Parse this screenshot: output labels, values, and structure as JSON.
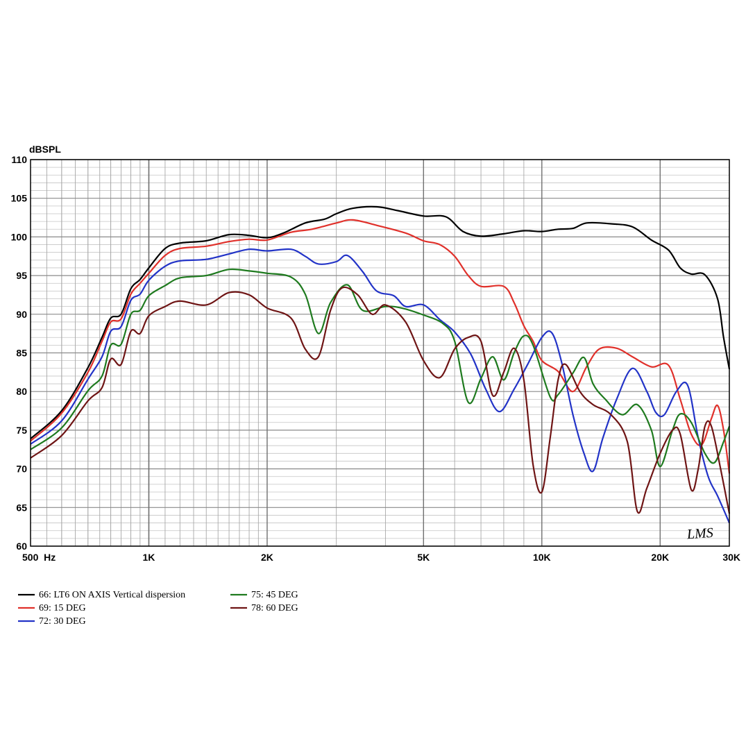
{
  "chart_data": {
    "type": "line",
    "title": "",
    "ylabel": "dBSPL",
    "xlabel": "",
    "x_scale": "log",
    "xlim": [
      500,
      30000
    ],
    "ylim": [
      60,
      110
    ],
    "grid": true,
    "legend_position": "bottom-left",
    "x_ticks": [
      {
        "value": 500,
        "label": "500  Hz"
      },
      {
        "value": 1000,
        "label": "1K"
      },
      {
        "value": 2000,
        "label": "2K"
      },
      {
        "value": 5000,
        "label": "5K"
      },
      {
        "value": 10000,
        "label": "10K"
      },
      {
        "value": 20000,
        "label": "20K"
      },
      {
        "value": 30000,
        "label": "30K"
      }
    ],
    "y_ticks": [
      60,
      65,
      70,
      75,
      80,
      85,
      90,
      95,
      100,
      105,
      110
    ],
    "series": [
      {
        "name": "66: LT6 ON AXIS Vertical dispersion",
        "color": "#000000",
        "points": [
          [
            500,
            73.9
          ],
          [
            600,
            77.5
          ],
          [
            700,
            83.1
          ],
          [
            760,
            87.0
          ],
          [
            800,
            89.5
          ],
          [
            850,
            90.0
          ],
          [
            900,
            93.3
          ],
          [
            950,
            94.5
          ],
          [
            1000,
            96.0
          ],
          [
            1100,
            98.5
          ],
          [
            1200,
            99.2
          ],
          [
            1400,
            99.5
          ],
          [
            1600,
            100.3
          ],
          [
            1800,
            100.2
          ],
          [
            2000,
            99.9
          ],
          [
            2200,
            100.5
          ],
          [
            2500,
            101.8
          ],
          [
            2800,
            102.3
          ],
          [
            3000,
            103.0
          ],
          [
            3300,
            103.7
          ],
          [
            3800,
            103.9
          ],
          [
            4300,
            103.4
          ],
          [
            5000,
            102.7
          ],
          [
            5700,
            102.6
          ],
          [
            6300,
            100.7
          ],
          [
            7000,
            100.1
          ],
          [
            8000,
            100.4
          ],
          [
            9000,
            100.8
          ],
          [
            10000,
            100.7
          ],
          [
            11000,
            101.0
          ],
          [
            12000,
            101.1
          ],
          [
            13000,
            101.8
          ],
          [
            15000,
            101.7
          ],
          [
            17000,
            101.3
          ],
          [
            19000,
            99.6
          ],
          [
            21000,
            98.3
          ],
          [
            22500,
            96.0
          ],
          [
            24000,
            95.2
          ],
          [
            26000,
            95.1
          ],
          [
            28000,
            92.0
          ],
          [
            29000,
            87.0
          ],
          [
            30000,
            82.9
          ]
        ]
      },
      {
        "name": "69: 15 DEG",
        "color": "#e0302a",
        "points": [
          [
            500,
            73.6
          ],
          [
            600,
            77.2
          ],
          [
            700,
            82.5
          ],
          [
            760,
            86.5
          ],
          [
            800,
            89.0
          ],
          [
            850,
            89.4
          ],
          [
            900,
            92.6
          ],
          [
            950,
            94.0
          ],
          [
            1000,
            95.3
          ],
          [
            1100,
            97.6
          ],
          [
            1200,
            98.5
          ],
          [
            1400,
            98.8
          ],
          [
            1600,
            99.4
          ],
          [
            1800,
            99.7
          ],
          [
            2000,
            99.6
          ],
          [
            2300,
            100.6
          ],
          [
            2600,
            101.0
          ],
          [
            3000,
            101.8
          ],
          [
            3300,
            102.2
          ],
          [
            3800,
            101.5
          ],
          [
            4500,
            100.5
          ],
          [
            5000,
            99.5
          ],
          [
            5500,
            99.0
          ],
          [
            6000,
            97.5
          ],
          [
            6500,
            95.0
          ],
          [
            7000,
            93.6
          ],
          [
            8000,
            93.6
          ],
          [
            8500,
            91.5
          ],
          [
            9000,
            88.5
          ],
          [
            9500,
            86.5
          ],
          [
            10000,
            84.0
          ],
          [
            11000,
            82.6
          ],
          [
            12000,
            80.0
          ],
          [
            13000,
            83.2
          ],
          [
            14000,
            85.5
          ],
          [
            15500,
            85.6
          ],
          [
            17000,
            84.5
          ],
          [
            19000,
            83.2
          ],
          [
            21000,
            83.4
          ],
          [
            22500,
            79.0
          ],
          [
            24000,
            74.5
          ],
          [
            25500,
            73.1
          ],
          [
            27000,
            76.5
          ],
          [
            28000,
            78.2
          ],
          [
            29000,
            75.0
          ],
          [
            30000,
            69.4
          ]
        ]
      },
      {
        "name": "72: 30 DEG",
        "color": "#2233c7",
        "points": [
          [
            500,
            73.2
          ],
          [
            600,
            76.2
          ],
          [
            700,
            81.6
          ],
          [
            760,
            84.5
          ],
          [
            800,
            87.8
          ],
          [
            850,
            88.4
          ],
          [
            900,
            91.8
          ],
          [
            950,
            92.6
          ],
          [
            1000,
            94.4
          ],
          [
            1100,
            96.2
          ],
          [
            1200,
            96.9
          ],
          [
            1400,
            97.1
          ],
          [
            1600,
            97.8
          ],
          [
            1800,
            98.4
          ],
          [
            2000,
            98.2
          ],
          [
            2300,
            98.4
          ],
          [
            2500,
            97.5
          ],
          [
            2700,
            96.5
          ],
          [
            3000,
            96.8
          ],
          [
            3200,
            97.6
          ],
          [
            3500,
            95.5
          ],
          [
            3800,
            93.0
          ],
          [
            4200,
            92.4
          ],
          [
            4500,
            91.0
          ],
          [
            5000,
            91.2
          ],
          [
            5500,
            89.3
          ],
          [
            6000,
            87.7
          ],
          [
            6600,
            84.8
          ],
          [
            7200,
            80.3
          ],
          [
            7800,
            77.4
          ],
          [
            8500,
            80.3
          ],
          [
            9200,
            83.5
          ],
          [
            10000,
            87.0
          ],
          [
            10600,
            87.6
          ],
          [
            11200,
            84.0
          ],
          [
            12000,
            77.0
          ],
          [
            12800,
            72.0
          ],
          [
            13500,
            69.7
          ],
          [
            14300,
            74.0
          ],
          [
            15500,
            79.0
          ],
          [
            17000,
            83.0
          ],
          [
            18500,
            80.0
          ],
          [
            19500,
            77.3
          ],
          [
            20500,
            77.0
          ],
          [
            22000,
            80.0
          ],
          [
            23500,
            80.8
          ],
          [
            25000,
            74.0
          ],
          [
            26500,
            69.0
          ],
          [
            28000,
            66.5
          ],
          [
            30000,
            63.0
          ]
        ]
      },
      {
        "name": "75: 45 DEG",
        "color": "#1e7a1e",
        "points": [
          [
            500,
            72.5
          ],
          [
            600,
            75.3
          ],
          [
            700,
            80.1
          ],
          [
            760,
            82.0
          ],
          [
            800,
            86.0
          ],
          [
            850,
            86.1
          ],
          [
            900,
            90.0
          ],
          [
            950,
            90.5
          ],
          [
            1000,
            92.4
          ],
          [
            1100,
            93.7
          ],
          [
            1200,
            94.7
          ],
          [
            1400,
            95.0
          ],
          [
            1600,
            95.8
          ],
          [
            1800,
            95.6
          ],
          [
            2000,
            95.3
          ],
          [
            2300,
            94.8
          ],
          [
            2500,
            92.6
          ],
          [
            2700,
            87.5
          ],
          [
            2900,
            91.5
          ],
          [
            3200,
            93.8
          ],
          [
            3500,
            90.5
          ],
          [
            4000,
            91.0
          ],
          [
            4400,
            90.8
          ],
          [
            5000,
            89.9
          ],
          [
            5600,
            88.8
          ],
          [
            6000,
            86.5
          ],
          [
            6500,
            78.6
          ],
          [
            7000,
            81.7
          ],
          [
            7500,
            84.5
          ],
          [
            8000,
            81.5
          ],
          [
            8500,
            85.0
          ],
          [
            9000,
            87.2
          ],
          [
            9500,
            86.0
          ],
          [
            10500,
            79.3
          ],
          [
            11000,
            79.6
          ],
          [
            12000,
            82.4
          ],
          [
            12800,
            84.4
          ],
          [
            13500,
            81.0
          ],
          [
            14500,
            79.0
          ],
          [
            16000,
            77.0
          ],
          [
            17500,
            78.3
          ],
          [
            19000,
            75.0
          ],
          [
            20000,
            70.3
          ],
          [
            21500,
            75.0
          ],
          [
            22500,
            77.1
          ],
          [
            24000,
            76.0
          ],
          [
            26000,
            72.0
          ],
          [
            27500,
            70.8
          ],
          [
            29000,
            73.5
          ],
          [
            30000,
            75.5
          ]
        ]
      },
      {
        "name": "78: 60 DEG",
        "color": "#6e1414",
        "points": [
          [
            500,
            71.4
          ],
          [
            600,
            74.3
          ],
          [
            700,
            78.8
          ],
          [
            760,
            80.5
          ],
          [
            800,
            84.2
          ],
          [
            850,
            83.5
          ],
          [
            900,
            87.8
          ],
          [
            950,
            87.5
          ],
          [
            1000,
            89.8
          ],
          [
            1100,
            91.0
          ],
          [
            1200,
            91.7
          ],
          [
            1400,
            91.2
          ],
          [
            1600,
            92.8
          ],
          [
            1800,
            92.5
          ],
          [
            2000,
            90.8
          ],
          [
            2300,
            89.5
          ],
          [
            2500,
            85.5
          ],
          [
            2700,
            84.5
          ],
          [
            2900,
            90.5
          ],
          [
            3100,
            93.4
          ],
          [
            3400,
            92.5
          ],
          [
            3700,
            90.0
          ],
          [
            4000,
            91.2
          ],
          [
            4500,
            89.0
          ],
          [
            5000,
            84.0
          ],
          [
            5500,
            81.8
          ],
          [
            6000,
            85.5
          ],
          [
            6500,
            87.0
          ],
          [
            7000,
            86.5
          ],
          [
            7500,
            79.5
          ],
          [
            8000,
            82.5
          ],
          [
            8500,
            85.6
          ],
          [
            9000,
            81.5
          ],
          [
            9500,
            70.5
          ],
          [
            10000,
            67.0
          ],
          [
            10500,
            74.0
          ],
          [
            11000,
            81.5
          ],
          [
            11500,
            83.5
          ],
          [
            12500,
            80.0
          ],
          [
            13500,
            78.3
          ],
          [
            15000,
            77.0
          ],
          [
            16500,
            73.5
          ],
          [
            17500,
            64.5
          ],
          [
            18500,
            67.5
          ],
          [
            20000,
            72.0
          ],
          [
            21500,
            75.0
          ],
          [
            22500,
            74.5
          ],
          [
            24000,
            67.3
          ],
          [
            25000,
            70.0
          ],
          [
            26000,
            75.5
          ],
          [
            27000,
            75.5
          ],
          [
            28500,
            70.0
          ],
          [
            30000,
            64.2
          ]
        ]
      }
    ]
  },
  "legend": {
    "left": [
      "66: LT6 ON AXIS Vertical dispersion",
      "69: 15 DEG",
      "72: 30 DEG"
    ],
    "right": [
      "75: 45 DEG",
      "78: 60 DEG"
    ]
  },
  "logo": "LMS"
}
